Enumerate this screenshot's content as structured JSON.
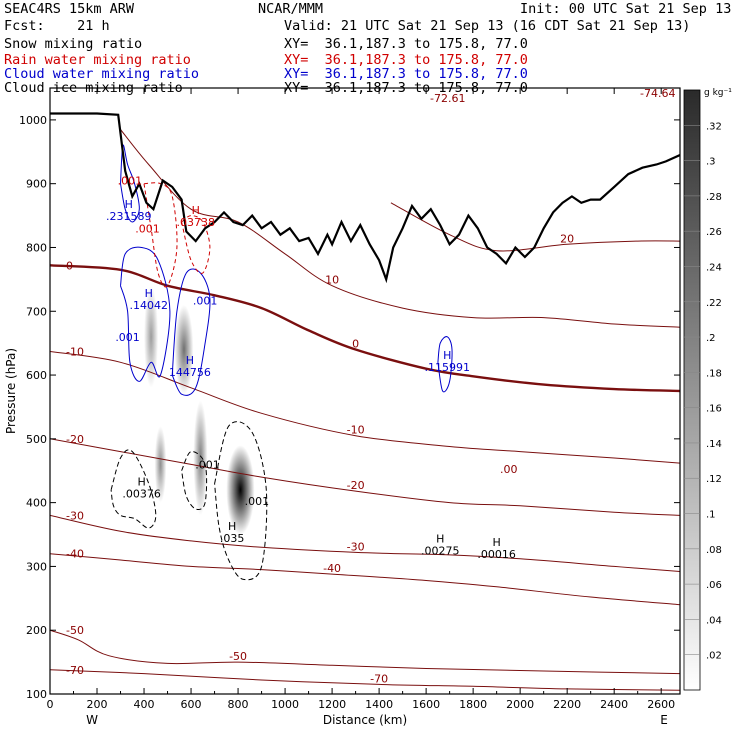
{
  "header": {
    "model": "SEAC4RS 15km ARW",
    "center": "NCAR/MMM",
    "init": "Init: 00 UTC Sat 21 Sep 13",
    "fcst": "Fcst:    21 h",
    "valid": "Valid: 21 UTC Sat 21 Sep 13 (16 CDT Sat 21 Sep 13)",
    "fields": [
      {
        "label": "Snow mixing ratio",
        "xy": "XY=  36.1,187.3 to 175.8, 77.0",
        "color": "#000000"
      },
      {
        "label": "Rain water mixing ratio",
        "xy": "XY=  36.1,187.3 to 175.8, 77.0",
        "color": "#d00000"
      },
      {
        "label": "Cloud water mixing ratio",
        "xy": "XY=  36.1,187.3 to 175.8, 77.0",
        "color": "#0000cc"
      },
      {
        "label": "Cloud ice mixing ratio",
        "xy": "XY=  36.1,187.3 to 175.8, 77.0",
        "color": "#000000"
      }
    ]
  },
  "chart_data": {
    "type": "cross-section",
    "xlabel": "Distance (km)",
    "ylabel": "Pressure (hPa)",
    "xlim": [
      0,
      2680
    ],
    "ylim": [
      1050,
      100
    ],
    "x_ticks": [
      0,
      200,
      400,
      600,
      800,
      1000,
      1200,
      1400,
      1600,
      1800,
      2000,
      2200,
      2400,
      2600
    ],
    "y_ticks": [
      1000,
      900,
      800,
      700,
      600,
      500,
      400,
      300,
      200,
      100
    ],
    "y_tick_labels": [
      "1000",
      "900",
      "800",
      "700",
      "600",
      "500",
      "400",
      "300",
      "200",
      "100"
    ],
    "endpoints": {
      "left": "W",
      "right": "E"
    },
    "colorbar": {
      "unit": "g kg⁻¹",
      "min": 0,
      "max": 0.34,
      "ticks": [
        ".32",
        ".3",
        ".28",
        ".26",
        ".24",
        ".22",
        ".2",
        ".18",
        ".16",
        ".14",
        ".12",
        ".1",
        ".08",
        ".06",
        ".04",
        ".02"
      ],
      "tick_values": [
        0.32,
        0.3,
        0.28,
        0.26,
        0.24,
        0.22,
        0.2,
        0.18,
        0.16,
        0.14,
        0.12,
        0.1,
        0.08,
        0.06,
        0.04,
        0.02
      ]
    },
    "terrain": [
      [
        0,
        1010
      ],
      [
        100,
        1010
      ],
      [
        200,
        1010
      ],
      [
        290,
        1008
      ],
      [
        320,
        920
      ],
      [
        350,
        880
      ],
      [
        380,
        900
      ],
      [
        410,
        870
      ],
      [
        440,
        860
      ],
      [
        480,
        905
      ],
      [
        520,
        895
      ],
      [
        560,
        875
      ],
      [
        580,
        825
      ],
      [
        620,
        810
      ],
      [
        660,
        830
      ],
      [
        700,
        840
      ],
      [
        740,
        855
      ],
      [
        780,
        840
      ],
      [
        820,
        835
      ],
      [
        860,
        850
      ],
      [
        900,
        830
      ],
      [
        940,
        840
      ],
      [
        980,
        820
      ],
      [
        1020,
        830
      ],
      [
        1060,
        810
      ],
      [
        1100,
        815
      ],
      [
        1140,
        790
      ],
      [
        1180,
        820
      ],
      [
        1200,
        805
      ],
      [
        1240,
        840
      ],
      [
        1280,
        810
      ],
      [
        1320,
        835
      ],
      [
        1360,
        805
      ],
      [
        1400,
        780
      ],
      [
        1430,
        750
      ],
      [
        1460,
        800
      ],
      [
        1500,
        830
      ],
      [
        1540,
        865
      ],
      [
        1580,
        845
      ],
      [
        1620,
        860
      ],
      [
        1660,
        835
      ],
      [
        1700,
        805
      ],
      [
        1740,
        820
      ],
      [
        1780,
        850
      ],
      [
        1820,
        830
      ],
      [
        1860,
        800
      ],
      [
        1900,
        790
      ],
      [
        1940,
        775
      ],
      [
        1980,
        800
      ],
      [
        2020,
        785
      ],
      [
        2060,
        800
      ],
      [
        2100,
        830
      ],
      [
        2140,
        855
      ],
      [
        2180,
        870
      ],
      [
        2220,
        880
      ],
      [
        2260,
        870
      ],
      [
        2300,
        875
      ],
      [
        2340,
        875
      ],
      [
        2400,
        895
      ],
      [
        2460,
        915
      ],
      [
        2520,
        925
      ],
      [
        2580,
        930
      ],
      [
        2620,
        935
      ],
      [
        2680,
        945
      ]
    ],
    "temperature_contours": [
      {
        "label": "-70",
        "level": -70,
        "points": [
          [
            0,
            138
          ],
          [
            400,
            132
          ],
          [
            900,
            122
          ],
          [
            1400,
            115
          ],
          [
            1800,
            112
          ],
          [
            2200,
            108
          ],
          [
            2680,
            106
          ]
        ]
      },
      {
        "label": "-50",
        "level": -50,
        "points": [
          [
            0,
            200
          ],
          [
            120,
            185
          ],
          [
            250,
            160
          ],
          [
            500,
            148
          ],
          [
            800,
            150
          ],
          [
            1200,
            145
          ],
          [
            1600,
            140
          ],
          [
            2100,
            136
          ],
          [
            2680,
            132
          ]
        ]
      },
      {
        "label": "-40",
        "level": -40,
        "points": [
          [
            0,
            320
          ],
          [
            300,
            310
          ],
          [
            600,
            300
          ],
          [
            900,
            295
          ],
          [
            1200,
            288
          ],
          [
            1600,
            278
          ],
          [
            1900,
            268
          ],
          [
            2300,
            252
          ],
          [
            2680,
            240
          ]
        ]
      },
      {
        "label": "-30",
        "level": -30,
        "points": [
          [
            0,
            380
          ],
          [
            300,
            355
          ],
          [
            600,
            340
          ],
          [
            900,
            330
          ],
          [
            1300,
            322
          ],
          [
            1700,
            318
          ],
          [
            2000,
            312
          ],
          [
            2400,
            300
          ],
          [
            2680,
            292
          ]
        ]
      },
      {
        "label": "-20",
        "level": -20,
        "points": [
          [
            0,
            500
          ],
          [
            300,
            480
          ],
          [
            600,
            460
          ],
          [
            900,
            440
          ],
          [
            1300,
            418
          ],
          [
            1700,
            400
          ],
          [
            2000,
            395
          ],
          [
            2400,
            385
          ],
          [
            2680,
            380
          ]
        ]
      },
      {
        "label": "-10",
        "level": -10,
        "points": [
          [
            0,
            637
          ],
          [
            300,
            620
          ],
          [
            600,
            580
          ],
          [
            900,
            540
          ],
          [
            1300,
            505
          ],
          [
            1700,
            488
          ],
          [
            2000,
            480
          ],
          [
            2400,
            470
          ],
          [
            2680,
            462
          ]
        ]
      },
      {
        "label": "0",
        "level": 0,
        "points": [
          [
            0,
            772
          ],
          [
            300,
            765
          ],
          [
            500,
            740
          ],
          [
            700,
            725
          ],
          [
            900,
            705
          ],
          [
            1100,
            670
          ],
          [
            1300,
            640
          ],
          [
            1600,
            610
          ],
          [
            1800,
            598
          ],
          [
            2100,
            585
          ],
          [
            2400,
            578
          ],
          [
            2680,
            575
          ]
        ]
      },
      {
        "label": "10",
        "level": 10,
        "points": [
          [
            300,
            985
          ],
          [
            420,
            930
          ],
          [
            600,
            860
          ],
          [
            800,
            840
          ],
          [
            1000,
            790
          ],
          [
            1200,
            740
          ],
          [
            1500,
            705
          ],
          [
            1800,
            690
          ],
          [
            2100,
            690
          ],
          [
            2400,
            680
          ],
          [
            2680,
            675
          ]
        ]
      },
      {
        "label": "20",
        "level": 20,
        "points": [
          [
            1450,
            870
          ],
          [
            1700,
            820
          ],
          [
            1900,
            795
          ],
          [
            2200,
            805
          ],
          [
            2500,
            810
          ],
          [
            2680,
            810
          ]
        ]
      }
    ],
    "contour_labels_extra": [
      "-74.64",
      "-72.61",
      ".00"
    ],
    "maxima_labels": [
      {
        "text": "H",
        "value": ".00376",
        "x": 390,
        "p": 410,
        "field": "snow"
      },
      {
        "text": "H",
        "value": ".035",
        "x": 775,
        "p": 340,
        "field": "snow"
      },
      {
        "text": "",
        "value": ".001",
        "x": 880,
        "p": 398,
        "field": "snow"
      },
      {
        "text": "",
        "value": ".001",
        "x": 670,
        "p": 455,
        "field": "snow"
      },
      {
        "text": "H",
        "value": ".00275",
        "x": 1660,
        "p": 320,
        "field": "snow"
      },
      {
        "text": "H",
        "value": ".00016",
        "x": 1900,
        "p": 315,
        "field": "snow"
      },
      {
        "text": "H",
        "value": "144756",
        "x": 595,
        "p": 600,
        "field": "cloud"
      },
      {
        "text": "H",
        "value": ".14042",
        "x": 420,
        "p": 705,
        "field": "cloud"
      },
      {
        "text": "",
        "value": ".001",
        "x": 330,
        "p": 655,
        "field": "cloud"
      },
      {
        "text": "",
        "value": ".001",
        "x": 660,
        "p": 712,
        "field": "cloud"
      },
      {
        "text": "H",
        "value": ".115991",
        "x": 1690,
        "p": 608,
        "field": "cloud"
      },
      {
        "text": "H",
        "value": ".231589",
        "x": 335,
        "p": 845,
        "field": "cloud"
      },
      {
        "text": "",
        "value": ".001",
        "x": 415,
        "p": 825,
        "field": "rain"
      },
      {
        "text": "H",
        "value": ".03738",
        "x": 620,
        "p": 835,
        "field": "rain"
      },
      {
        "text": "",
        "value": ".001",
        "x": 340,
        "p": 900,
        "field": "rain"
      }
    ],
    "shaded_blobs": [
      {
        "x": 810,
        "p": 420,
        "rx": 60,
        "rp": 70,
        "value": 0.34
      },
      {
        "x": 640,
        "p": 470,
        "rx": 30,
        "rp": 90,
        "value": 0.12
      },
      {
        "x": 470,
        "p": 460,
        "rx": 25,
        "rp": 60,
        "value": 0.1
      },
      {
        "x": 570,
        "p": 640,
        "rx": 40,
        "rp": 70,
        "value": 0.14
      },
      {
        "x": 430,
        "p": 660,
        "rx": 30,
        "rp": 80,
        "value": 0.08
      }
    ]
  }
}
